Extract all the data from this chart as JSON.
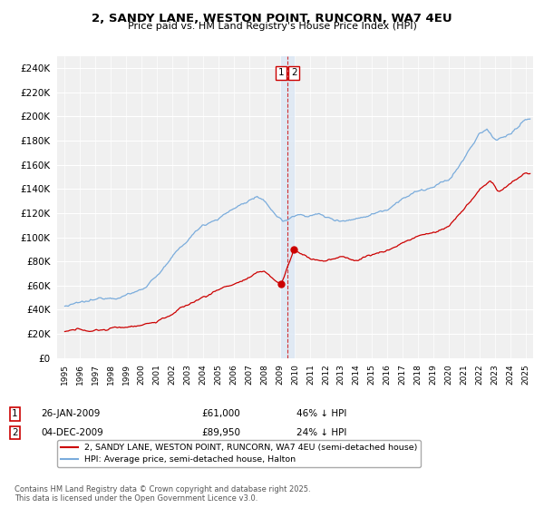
{
  "title_line1": "2, SANDY LANE, WESTON POINT, RUNCORN, WA7 4EU",
  "title_line2": "Price paid vs. HM Land Registry's House Price Index (HPI)",
  "legend_label1": "2, SANDY LANE, WESTON POINT, RUNCORN, WA7 4EU (semi-detached house)",
  "legend_label2": "HPI: Average price, semi-detached house, Halton",
  "line1_color": "#cc0000",
  "line2_color": "#7aacdc",
  "vline_color": "#cc0000",
  "vline_fill": "#dce8f5",
  "annotation_box_color": "#cc0000",
  "marker1": {
    "date_x": 2009.07,
    "price": 61000,
    "label": "1"
  },
  "marker2": {
    "date_x": 2009.92,
    "price": 89950,
    "label": "2"
  },
  "table_row1": [
    "1",
    "26-JAN-2009",
    "£61,000",
    "46% ↓ HPI"
  ],
  "table_row2": [
    "2",
    "04-DEC-2009",
    "£89,950",
    "24% ↓ HPI"
  ],
  "footer": "Contains HM Land Registry data © Crown copyright and database right 2025.\nThis data is licensed under the Open Government Licence v3.0.",
  "ylim": [
    0,
    250000
  ],
  "yticks": [
    0,
    20000,
    40000,
    60000,
    80000,
    100000,
    120000,
    140000,
    160000,
    180000,
    200000,
    220000,
    240000
  ],
  "xlim_start": 1994.5,
  "xlim_end": 2025.5,
  "background_color": "#ffffff",
  "plot_bg_color": "#f0f0f0"
}
